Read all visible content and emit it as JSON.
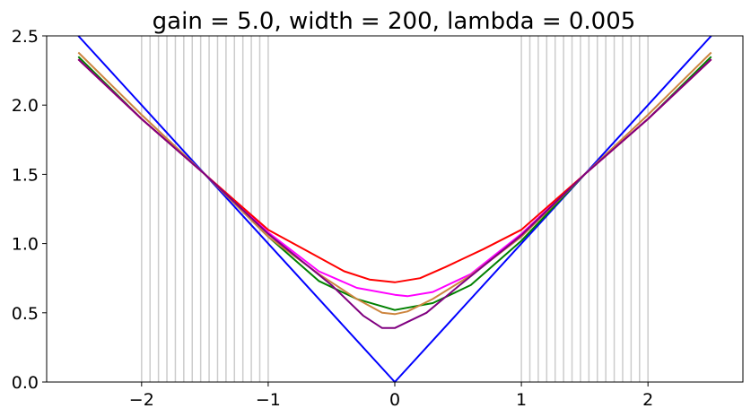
{
  "chart_data": {
    "type": "line",
    "title": "gain = 5.0, width = 200, lambda = 0.005",
    "xlabel": "",
    "ylabel": "",
    "xlim": [
      -2.75,
      2.75
    ],
    "ylim": [
      0.0,
      2.5
    ],
    "grid": false,
    "legend": "none",
    "xticks": [
      -2,
      -1,
      0,
      1,
      2
    ],
    "xtick_labels": [
      "−2",
      "−1",
      "0",
      "1",
      "2"
    ],
    "yticks": [
      0.0,
      0.5,
      1.0,
      1.5,
      2.0,
      2.5
    ],
    "ytick_labels": [
      "0.0",
      "0.5",
      "1.0",
      "1.5",
      "2.0",
      "2.5"
    ],
    "vlines": {
      "color": "#cccccc",
      "x": [
        -2.0,
        -1.9333,
        -1.8667,
        -1.8,
        -1.7333,
        -1.6667,
        -1.6,
        -1.5333,
        -1.4667,
        -1.4,
        -1.3333,
        -1.2667,
        -1.2,
        -1.1333,
        -1.0667,
        -1.0,
        1.0,
        1.0667,
        1.1333,
        1.2,
        1.2667,
        1.3333,
        1.4,
        1.4667,
        1.5333,
        1.6,
        1.6667,
        1.7333,
        1.8,
        1.8667,
        1.9333,
        2.0
      ]
    },
    "series": [
      {
        "color": "#0000ff",
        "x": [
          -2.5,
          0.0,
          2.5
        ],
        "y": [
          2.5,
          0.0,
          2.5
        ]
      },
      {
        "color": "#008000",
        "x": [
          -2.5,
          -2.0,
          -1.5,
          -1.0,
          -0.6,
          -0.3,
          0.0,
          0.3,
          0.6,
          1.0,
          1.5,
          2.0,
          2.5
        ],
        "y": [
          2.35,
          1.9,
          1.5,
          1.05,
          0.73,
          0.6,
          0.52,
          0.57,
          0.7,
          1.02,
          1.5,
          1.9,
          2.35
        ]
      },
      {
        "color": "#ff00ff",
        "x": [
          -2.5,
          -2.0,
          -1.5,
          -1.0,
          -0.6,
          -0.3,
          0.0,
          0.1,
          0.3,
          0.6,
          1.0,
          1.5,
          2.0,
          2.5
        ],
        "y": [
          2.33,
          1.9,
          1.5,
          1.08,
          0.8,
          0.68,
          0.63,
          0.62,
          0.65,
          0.78,
          1.07,
          1.5,
          1.9,
          2.33
        ]
      },
      {
        "color": "#ff0000",
        "x": [
          -2.5,
          -2.0,
          -1.5,
          -1.0,
          -0.7,
          -0.4,
          -0.2,
          0.0,
          0.2,
          0.4,
          0.7,
          1.0,
          1.5,
          2.0,
          2.5
        ],
        "y": [
          2.33,
          1.9,
          1.5,
          1.1,
          0.95,
          0.8,
          0.74,
          0.72,
          0.75,
          0.83,
          0.96,
          1.1,
          1.5,
          1.9,
          2.33
        ]
      },
      {
        "color": "#cd853f",
        "x": [
          -2.5,
          -2.0,
          -1.5,
          -1.0,
          -0.6,
          -0.3,
          -0.1,
          0.0,
          0.1,
          0.3,
          0.6,
          1.0,
          1.5,
          2.0,
          2.5
        ],
        "y": [
          2.38,
          1.93,
          1.5,
          1.05,
          0.78,
          0.6,
          0.5,
          0.49,
          0.51,
          0.6,
          0.77,
          1.05,
          1.5,
          1.93,
          2.38
        ]
      },
      {
        "color": "#800080",
        "x": [
          -2.5,
          -2.0,
          -1.5,
          -1.0,
          -0.5,
          -0.25,
          -0.1,
          0.0,
          0.25,
          0.5,
          1.0,
          1.5,
          2.0,
          2.5
        ],
        "y": [
          2.33,
          1.9,
          1.5,
          1.07,
          0.7,
          0.48,
          0.39,
          0.39,
          0.5,
          0.69,
          1.06,
          1.5,
          1.9,
          2.33
        ]
      }
    ]
  }
}
